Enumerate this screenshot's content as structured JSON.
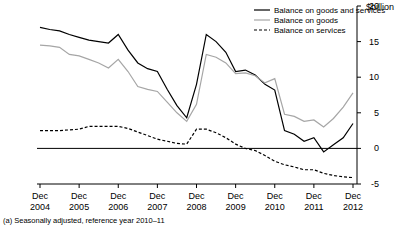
{
  "chart_data": {
    "type": "line",
    "y_label": "$billion",
    "footnote": "(a) Seasonally adjusted, reference year 2010–11",
    "categories": [
      "Dec 2004",
      null,
      null,
      null,
      "Dec 2005",
      null,
      null,
      null,
      "Dec 2006",
      null,
      null,
      null,
      "Dec 2007",
      null,
      null,
      null,
      "Dec 2008",
      null,
      null,
      null,
      "Dec 2009",
      null,
      null,
      null,
      "Dec 2010",
      null,
      null,
      null,
      "Dec 2011",
      null,
      null,
      null,
      "Dec 2012"
    ],
    "series": [
      {
        "name": "Balance on goods and services",
        "color": "#000000",
        "line_style": "solid",
        "values": [
          17.0,
          16.7,
          16.5,
          16.0,
          15.6,
          15.2,
          15.0,
          14.8,
          16.0,
          13.8,
          12.0,
          11.2,
          10.8,
          8.3,
          6.0,
          4.3,
          9.0,
          16.0,
          15.0,
          13.5,
          10.8,
          11.0,
          10.3,
          9.0,
          8.2,
          2.5,
          2.0,
          1.0,
          1.5,
          -0.5,
          0.5,
          1.5,
          3.5
        ]
      },
      {
        "name": "Balance on goods",
        "color": "#a6a6a6",
        "line_style": "solid",
        "values": [
          14.5,
          14.4,
          14.2,
          13.2,
          13.0,
          12.5,
          12.0,
          11.3,
          12.5,
          10.8,
          8.7,
          8.3,
          8.0,
          6.5,
          5.0,
          3.8,
          6.2,
          13.2,
          12.8,
          12.0,
          10.5,
          10.6,
          10.2,
          9.2,
          9.8,
          4.8,
          4.5,
          3.8,
          4.0,
          3.0,
          4.2,
          5.8,
          7.8
        ]
      },
      {
        "name": "Balance on services",
        "color": "#000000",
        "line_style": "dashed",
        "values": [
          2.5,
          2.5,
          2.5,
          2.6,
          2.7,
          3.1,
          3.1,
          3.1,
          3.1,
          2.8,
          2.3,
          1.8,
          1.3,
          1.0,
          0.7,
          0.6,
          2.7,
          2.7,
          2.2,
          1.5,
          0.6,
          0.0,
          -0.3,
          -1.0,
          -1.8,
          -2.3,
          -2.6,
          -3.0,
          -3.0,
          -3.5,
          -3.8,
          -4.0,
          -4.1
        ]
      }
    ],
    "ylim": [
      -5,
      20
    ],
    "yticks": [
      -5,
      0,
      5,
      10,
      15,
      20
    ],
    "grid": false,
    "legend": "top-right"
  }
}
